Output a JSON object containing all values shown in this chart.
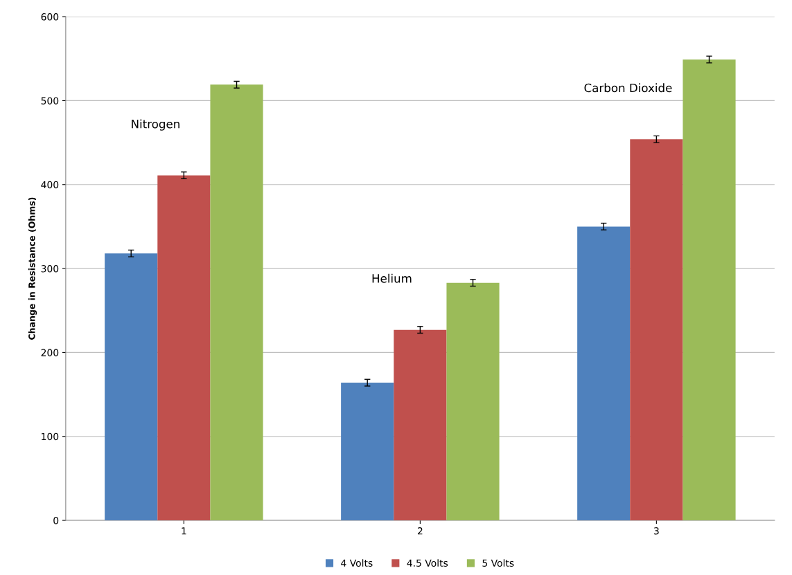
{
  "chart_data": {
    "type": "bar",
    "ylabel": "Change in Resistance (Ohms)",
    "categories": [
      "1",
      "2",
      "3"
    ],
    "series": [
      {
        "name": "4 Volts",
        "color": "#4f81bd",
        "values": [
          318,
          164,
          350
        ],
        "errors": [
          4,
          4,
          4
        ]
      },
      {
        "name": "4.5 Volts",
        "color": "#c0504d",
        "values": [
          411,
          227,
          454
        ],
        "errors": [
          4,
          4,
          4
        ]
      },
      {
        "name": "5 Volts",
        "color": "#9bbb59",
        "values": [
          519,
          283,
          549
        ],
        "errors": [
          4,
          4,
          4
        ]
      }
    ],
    "annotations": [
      "Nitrogen",
      "Helium",
      "Carbon Dioxide"
    ],
    "ylim": [
      0,
      600
    ],
    "yticks": [
      0,
      100,
      200,
      300,
      400,
      500,
      600
    ],
    "grid": "y",
    "legend": "bottom"
  }
}
